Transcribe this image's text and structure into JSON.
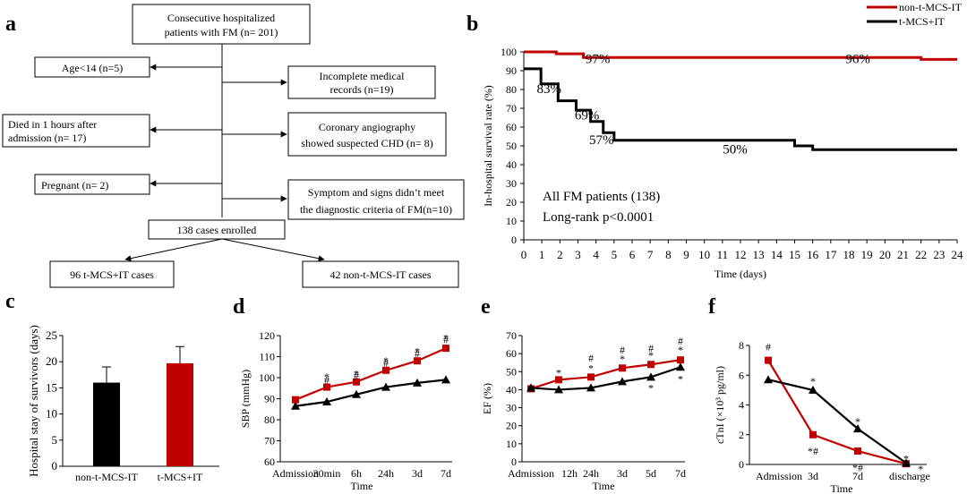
{
  "colors": {
    "red": "#c00000",
    "black": "#000000"
  },
  "panel_letters": {
    "a": "a",
    "b": "b",
    "c": "c",
    "d": "d",
    "e": "e",
    "f": "f"
  },
  "flowchart": {
    "top": [
      "Consecutive hospitalized",
      "patients with FM (n= 201)"
    ],
    "age": "Age<14  (n=5)",
    "incomplete": [
      "Incomplete medical",
      "records (n=19)"
    ],
    "died": [
      "Died in 1 hours after",
      "admission (n= 17)"
    ],
    "coronary": [
      "Coronary angiography",
      "showed suspected CHD (n= 8)"
    ],
    "pregnant": "Pregnant (n= 2)",
    "symptom": [
      "Symptom and signs didn’t meet",
      "the diagnostic criteria of FM(n=10)"
    ],
    "enrolled": "138 cases enrolled",
    "left": "96 t-MCS+IT cases",
    "right": "42 non-t-MCS-IT cases"
  },
  "chart_data": [
    {
      "panel": "b",
      "type": "line",
      "ylabel": "In-hospital survival rate (%)",
      "xlabel": "Time (days)",
      "xlim": [
        0,
        24
      ],
      "ylim": [
        0,
        100
      ],
      "xticks": [
        0,
        1,
        2,
        3,
        4,
        5,
        6,
        7,
        8,
        9,
        10,
        11,
        12,
        13,
        14,
        15,
        16,
        17,
        18,
        19,
        20,
        21,
        22,
        23,
        24
      ],
      "yticks": [
        0,
        10,
        20,
        30,
        40,
        50,
        60,
        70,
        80,
        90,
        100
      ],
      "series": [
        {
          "name": "non-t-MCS-IT",
          "color": "#c00000",
          "step_x": [
            0,
            1.8,
            3.3,
            22,
            24
          ],
          "step_y": [
            100,
            99,
            97,
            96,
            96
          ]
        },
        {
          "name": "t-MCS+IT",
          "color": "#000000",
          "step_x": [
            0,
            0.95,
            1.9,
            2.9,
            3.7,
            4.4,
            5.0,
            15.0,
            16.0,
            24
          ],
          "step_y": [
            91,
            83,
            74,
            69,
            63,
            57,
            53,
            50,
            48,
            48
          ]
        }
      ],
      "annotations": [
        {
          "text": "97%",
          "x": 4.1,
          "y": 94
        },
        {
          "text": "96%",
          "x": 18.5,
          "y": 94
        },
        {
          "text": "83%",
          "x": 1.4,
          "y": 78
        },
        {
          "text": "69%",
          "x": 3.5,
          "y": 64
        },
        {
          "text": "57%",
          "x": 4.3,
          "y": 51
        },
        {
          "text": "50%",
          "x": 11.7,
          "y": 46
        }
      ],
      "notes": [
        "All FM patients (138)",
        "Long-rank p<0.0001"
      ]
    },
    {
      "panel": "c",
      "type": "bar",
      "ylabel": "Hospital stay of survivors (days)",
      "ylim": [
        0,
        25
      ],
      "yticks": [
        0,
        5,
        10,
        15,
        20,
        25
      ],
      "categories": [
        "non-t-MCS-IT",
        "t-MCS+IT"
      ],
      "values": [
        16,
        19.7
      ],
      "errors": [
        3,
        3.2
      ],
      "colors": [
        "#000000",
        "#c00000"
      ]
    },
    {
      "panel": "d",
      "type": "line",
      "ylabel": "SBP (mmHg)",
      "xlabel": "Time",
      "ylim": [
        60,
        120
      ],
      "yticks": [
        60,
        70,
        80,
        90,
        100,
        110,
        120
      ],
      "categories": [
        "Admission",
        "30min",
        "6h",
        "24h",
        "3d",
        "7d"
      ],
      "series": [
        {
          "name": "red",
          "color": "#c00000",
          "marker": "square",
          "values": [
            89.5,
            95.5,
            98,
            103.5,
            108,
            114
          ]
        },
        {
          "name": "black",
          "color": "#000000",
          "marker": "triangle",
          "values": [
            86.5,
            88.5,
            92,
            95.5,
            97.5,
            99
          ]
        }
      ],
      "marks": [
        {
          "text": "*",
          "i": 1,
          "y": 100.5
        },
        {
          "text": "#",
          "i": 1,
          "y": 99
        },
        {
          "text": "*",
          "i": 2,
          "y": 102
        },
        {
          "text": "#",
          "i": 2,
          "y": 101
        },
        {
          "text": "*",
          "i": 3,
          "y": 108
        },
        {
          "text": "#",
          "i": 3,
          "y": 107
        },
        {
          "text": "*",
          "i": 4,
          "y": 112.5
        },
        {
          "text": "#",
          "i": 4,
          "y": 111.5
        },
        {
          "text": "*",
          "i": 5,
          "y": 119
        },
        {
          "text": "#",
          "i": 5,
          "y": 118
        }
      ]
    },
    {
      "panel": "e",
      "type": "line",
      "ylabel": "EF (%)",
      "xlabel": "Time",
      "ylim": [
        0,
        70
      ],
      "yticks": [
        0,
        10,
        20,
        30,
        40,
        50,
        60,
        70
      ],
      "categories": [
        "Admission",
        "12h",
        "24h",
        "3d",
        "5d",
        "7d"
      ],
      "series": [
        {
          "name": "red",
          "color": "#c00000",
          "marker": "square",
          "values": [
            40.5,
            45.5,
            47,
            52,
            54,
            56.5
          ]
        },
        {
          "name": "black",
          "color": "#000000",
          "marker": "triangle",
          "values": [
            41,
            40,
            41,
            44.5,
            47,
            52.5
          ]
        }
      ],
      "marks": [
        {
          "text": "*",
          "i": 1,
          "y": 49.5
        },
        {
          "text": "#",
          "i": 2,
          "y": 57.5
        },
        {
          "text": "*",
          "i": 2,
          "y": 52
        },
        {
          "text": "#",
          "i": 3,
          "y": 62
        },
        {
          "text": "*",
          "i": 3,
          "y": 57
        },
        {
          "text": "#",
          "i": 4,
          "y": 63
        },
        {
          "text": "*",
          "i": 4,
          "y": 59
        },
        {
          "text": "*",
          "i": 4,
          "y": 41
        },
        {
          "text": "#",
          "i": 5,
          "y": 67
        },
        {
          "text": "*",
          "i": 5,
          "y": 62
        },
        {
          "text": "*",
          "i": 5,
          "y": 46
        }
      ]
    },
    {
      "panel": "f",
      "type": "line",
      "ylabel": "cTnI (×10³ pg/ml)",
      "xlabel": "Time",
      "ylim": [
        0,
        8
      ],
      "yticks": [
        0,
        2,
        4,
        6,
        8
      ],
      "categories": [
        "Admission",
        "3d",
        "7d",
        "discharge"
      ],
      "series": [
        {
          "name": "red",
          "color": "#c00000",
          "marker": "square",
          "values": [
            7,
            2,
            0.9,
            0.05
          ]
        },
        {
          "name": "black",
          "color": "#000000",
          "marker": "triangle",
          "values": [
            5.7,
            5,
            2.4,
            0.1
          ]
        }
      ],
      "marks": [
        {
          "text": "#",
          "i": 0,
          "y": 7.9
        },
        {
          "text": "*",
          "i": 1,
          "y": 5.6
        },
        {
          "text": "*#",
          "i": 1,
          "y": 0.9
        },
        {
          "text": "*",
          "i": 2,
          "y": 2.9
        },
        {
          "text": "*#",
          "i": 2,
          "y": -0.2
        },
        {
          "text": "*",
          "i": 3,
          "y": 0.4
        },
        {
          "text": "*",
          "i": 3.3,
          "y": -0.3
        }
      ]
    }
  ]
}
